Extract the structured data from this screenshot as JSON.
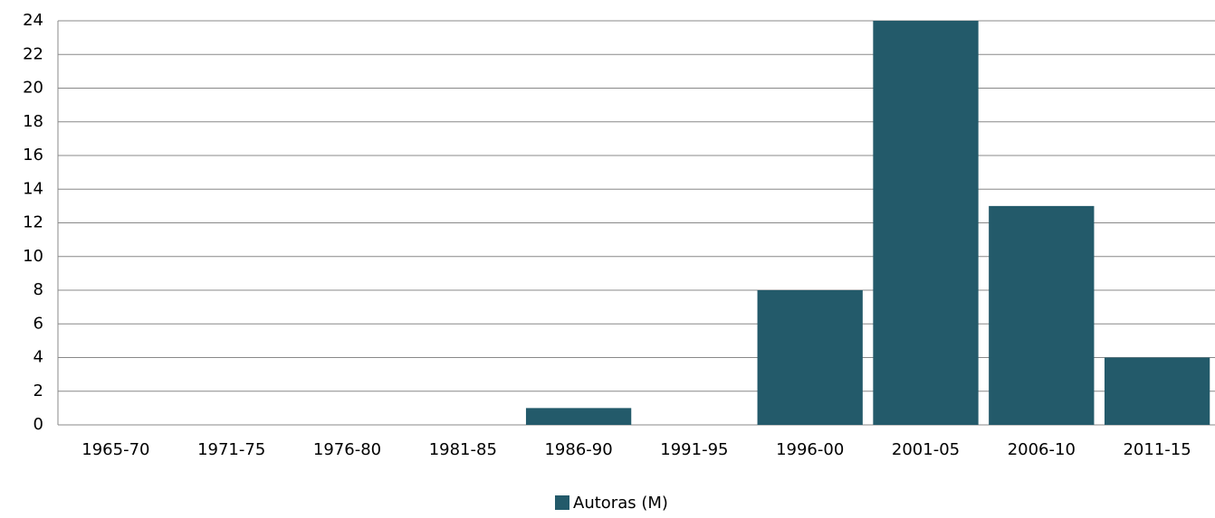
{
  "chart_data": {
    "type": "bar",
    "categories": [
      "1965-70",
      "1971-75",
      "1976-80",
      "1981-85",
      "1986-90",
      "1991-95",
      "1996-00",
      "2001-05",
      "2006-10",
      "2011-15"
    ],
    "series": [
      {
        "name": "Autoras (M)",
        "color": "#235a6a",
        "values": [
          0,
          0,
          0,
          0,
          1,
          0,
          8,
          24,
          13,
          4
        ]
      }
    ],
    "ylim": [
      0,
      24
    ],
    "yticks": [
      0,
      2,
      4,
      6,
      8,
      10,
      12,
      14,
      16,
      18,
      20,
      22,
      24
    ],
    "grid": true,
    "legend": "bottom"
  }
}
